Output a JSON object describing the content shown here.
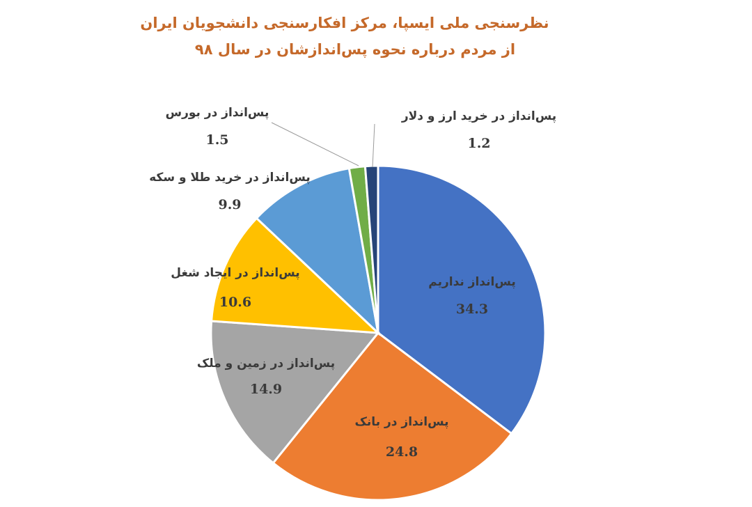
{
  "title_lines": [
    "نظرسنجی ملی ایسپا، مرکز افکارسنجی دانشجویان ایران",
    "از مردم درباره نحوه پس‌اندازشان در سال ۹۸"
  ],
  "chart_data": {
    "type": "pie",
    "title": "نظرسنجی ملی ایسپا، مرکز افکارسنجی دانشجویان ایران — از مردم درباره نحوه پس‌اندازشان در سال ۹۸",
    "slices": [
      {
        "label": "پس‌انداز نداریم",
        "value": 34.3,
        "value_text": "34.3",
        "color": "#4472c4"
      },
      {
        "label": "پس‌انداز در بانک",
        "value": 24.8,
        "value_text": "24.8",
        "color": "#ed7d31"
      },
      {
        "label": "پس‌انداز در  زمین و ملک",
        "value": 14.9,
        "value_text": "14.9",
        "color": "#a5a5a5"
      },
      {
        "label": "پس‌انداز در  ایجاد شغل",
        "value": 10.6,
        "value_text": "10.6",
        "color": "#ffc000"
      },
      {
        "label": "پس‌انداز در خرید طلا و سکه",
        "value": 9.9,
        "value_text": "9.9",
        "color": "#5b9bd5"
      },
      {
        "label": "پس‌انداز در بورس",
        "value": 1.5,
        "value_text": "1.5",
        "color": "#70ad47"
      },
      {
        "label": "پس‌انداز در خرید ارز و دلار",
        "value": 1.2,
        "value_text": "1.2",
        "color": "#264478"
      }
    ],
    "start": "12 o'clock",
    "direction": "clockwise",
    "legend": "none"
  }
}
